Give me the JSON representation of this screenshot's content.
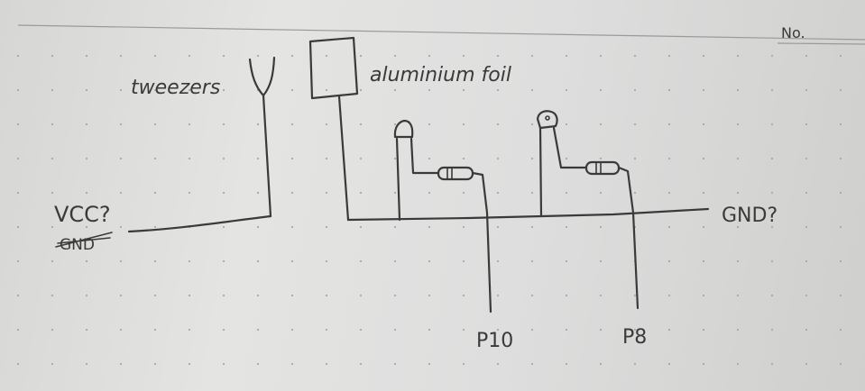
{
  "page": {
    "no_label": "No."
  },
  "labels": {
    "tweezers": "tweezers",
    "aluminium_foil": "aluminium foil",
    "vcc": "VCC?",
    "gnd_crossed": "GND",
    "gnd": "GND?",
    "pin_left": "P10",
    "pin_right": "P8"
  },
  "colors": {
    "ink": "#3a3a3a",
    "paper": "#dedede",
    "rule": "#9a9a9a"
  }
}
